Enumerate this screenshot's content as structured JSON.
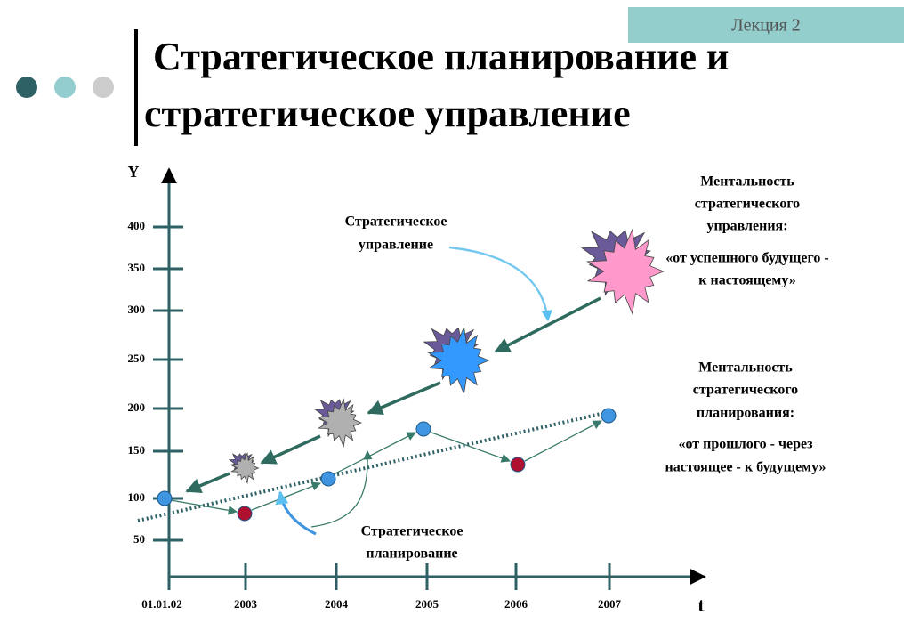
{
  "header": {
    "label": "Лекция 2",
    "title_lines": [
      "Стратегическое планирование и",
      "стратегическое управление"
    ]
  },
  "diagram": {
    "y_axis_label": "Y",
    "x_axis_label": "t",
    "y_ticks": [
      "400",
      "350",
      "300",
      "250",
      "200",
      "150",
      "100",
      "50"
    ],
    "x_ticks": [
      "01.01.02",
      "2003",
      "2004",
      "2005",
      "2006",
      "2007"
    ],
    "management_label": [
      "Стратегическое",
      "управление"
    ],
    "planning_label": [
      "Стратегическое",
      "планирование"
    ],
    "management_mentality": [
      "Ментальность",
      "стратегического",
      "управления:",
      "«от  успешного будущего -",
      "к настоящему»"
    ],
    "planning_mentality": [
      "Ментальность",
      "стратегического",
      "планирования:",
      "«от прошлого - через",
      "настоящее - к будущему»"
    ]
  }
}
